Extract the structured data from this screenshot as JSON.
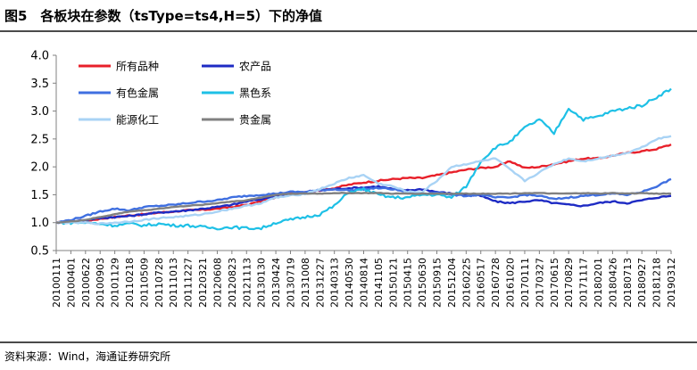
{
  "figure": {
    "title": "图5　各板块在参数（tsType=ts4,H=5）下的净值",
    "source": "资料来源：Wind，海通证券研究所"
  },
  "chart_data": {
    "type": "line",
    "ylim": [
      0.5,
      4.0
    ],
    "yticks": [
      "4.0",
      "3.5",
      "3.0",
      "2.5",
      "2.0",
      "1.5",
      "1.0",
      "0.5"
    ],
    "grid": false,
    "legend_position": "top-left",
    "x_tick_labels": [
      "20100111",
      "20100401",
      "20100622",
      "20100903",
      "20101129",
      "20110218",
      "20110509",
      "20110728",
      "20111013",
      "20111227",
      "20120321",
      "20120608",
      "20120823",
      "20121113",
      "20130130",
      "20130424",
      "20130719",
      "20131008",
      "20131227",
      "20140313",
      "20140530",
      "20140814",
      "20141105",
      "20150121",
      "20150415",
      "20150630",
      "20150915",
      "20151204",
      "20160225",
      "20160517",
      "20160728",
      "20161020",
      "20170111",
      "20170327",
      "20170615",
      "20170829",
      "20171117",
      "20180201",
      "20180426",
      "20180713",
      "20180927",
      "20181218",
      "20190312"
    ],
    "series": [
      {
        "name": "所有品种",
        "color": "#e8202a",
        "values": [
          1.0,
          1.01,
          1.03,
          1.07,
          1.1,
          1.13,
          1.15,
          1.18,
          1.2,
          1.22,
          1.23,
          1.25,
          1.28,
          1.32,
          1.38,
          1.45,
          1.52,
          1.55,
          1.58,
          1.62,
          1.68,
          1.72,
          1.75,
          1.78,
          1.8,
          1.8,
          1.85,
          1.9,
          1.95,
          1.98,
          2.0,
          2.1,
          1.98,
          2.0,
          2.05,
          2.1,
          2.15,
          2.15,
          2.2,
          2.25,
          2.28,
          2.32,
          2.4
        ]
      },
      {
        "name": "农产品",
        "color": "#1e2bc4",
        "values": [
          1.0,
          1.02,
          1.05,
          1.08,
          1.1,
          1.12,
          1.15,
          1.18,
          1.2,
          1.22,
          1.25,
          1.28,
          1.32,
          1.38,
          1.42,
          1.48,
          1.5,
          1.55,
          1.58,
          1.6,
          1.62,
          1.63,
          1.65,
          1.6,
          1.58,
          1.6,
          1.55,
          1.52,
          1.5,
          1.48,
          1.38,
          1.35,
          1.38,
          1.4,
          1.35,
          1.32,
          1.3,
          1.35,
          1.38,
          1.35,
          1.4,
          1.45,
          1.48
        ]
      },
      {
        "name": "有色金属",
        "color": "#3f6fe0",
        "values": [
          1.0,
          1.05,
          1.12,
          1.2,
          1.25,
          1.22,
          1.28,
          1.3,
          1.32,
          1.35,
          1.38,
          1.4,
          1.45,
          1.48,
          1.5,
          1.52,
          1.55,
          1.55,
          1.58,
          1.6,
          1.58,
          1.6,
          1.62,
          1.6,
          1.55,
          1.5,
          1.55,
          1.5,
          1.48,
          1.5,
          1.45,
          1.45,
          1.5,
          1.48,
          1.42,
          1.45,
          1.48,
          1.5,
          1.52,
          1.5,
          1.55,
          1.65,
          1.78
        ]
      },
      {
        "name": "黑色系",
        "color": "#1ec0e6",
        "values": [
          1.0,
          1.0,
          1.0,
          0.98,
          0.95,
          0.98,
          0.95,
          0.98,
          0.95,
          0.95,
          0.92,
          0.9,
          0.92,
          0.9,
          0.9,
          1.0,
          1.05,
          1.1,
          1.15,
          1.3,
          1.55,
          1.6,
          1.5,
          1.45,
          1.45,
          1.5,
          1.5,
          1.45,
          1.65,
          2.1,
          2.35,
          2.45,
          2.7,
          2.85,
          2.6,
          3.05,
          2.85,
          2.9,
          3.0,
          3.05,
          3.1,
          3.25,
          3.4
        ]
      },
      {
        "name": "能源化工",
        "color": "#a9d3f5",
        "values": [
          1.0,
          1.0,
          1.0,
          0.98,
          1.0,
          1.02,
          1.05,
          1.08,
          1.1,
          1.12,
          1.15,
          1.2,
          1.25,
          1.3,
          1.35,
          1.45,
          1.48,
          1.52,
          1.6,
          1.7,
          1.8,
          1.85,
          1.7,
          1.65,
          1.55,
          1.55,
          1.75,
          2.0,
          2.05,
          2.1,
          2.15,
          1.95,
          1.75,
          1.9,
          2.05,
          2.15,
          2.1,
          2.15,
          2.2,
          2.25,
          2.35,
          2.5,
          2.55
        ]
      },
      {
        "name": "贵金属",
        "color": "#808080",
        "values": [
          1.0,
          1.02,
          1.05,
          1.1,
          1.15,
          1.2,
          1.22,
          1.25,
          1.28,
          1.3,
          1.32,
          1.35,
          1.38,
          1.4,
          1.45,
          1.5,
          1.52,
          1.52,
          1.52,
          1.53,
          1.53,
          1.53,
          1.53,
          1.52,
          1.52,
          1.52,
          1.52,
          1.52,
          1.52,
          1.52,
          1.52,
          1.52,
          1.53,
          1.53,
          1.52,
          1.52,
          1.53,
          1.52,
          1.53,
          1.52,
          1.53,
          1.52,
          1.52
        ]
      }
    ]
  }
}
